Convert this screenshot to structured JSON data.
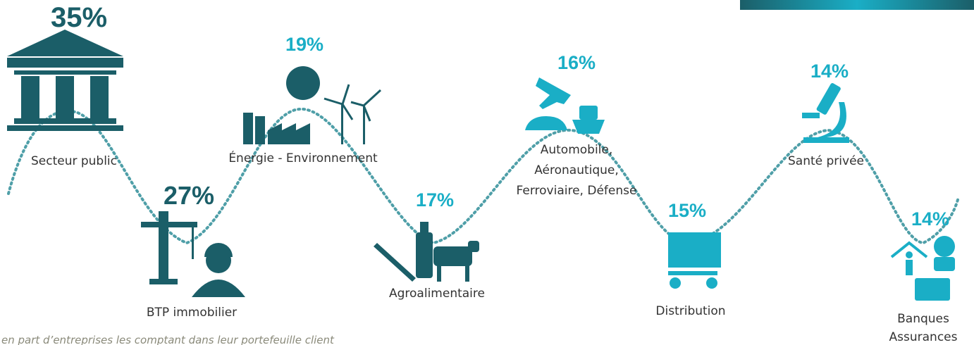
{
  "items": [
    {
      "percent": "35%",
      "label": [
        "Secteur public"
      ]
    },
    {
      "percent": "27%",
      "label": [
        "BTP immobilier"
      ]
    },
    {
      "percent": "19%",
      "label": [
        "Énergie - Environnement"
      ]
    },
    {
      "percent": "17%",
      "label": [
        "Agroalimentaire"
      ]
    },
    {
      "percent": "16%",
      "label": [
        "Automobile,",
        "Aéronautique,",
        "Ferroviaire, Défense"
      ]
    },
    {
      "percent": "15%",
      "label": [
        "Distribution"
      ]
    },
    {
      "percent": "14%",
      "label": [
        "Santé privée"
      ]
    },
    {
      "percent": "14%",
      "label": [
        "Banques",
        "Assurances"
      ]
    }
  ],
  "footnote": "en part d’entreprises les comptant dans leur portefeuille client"
}
